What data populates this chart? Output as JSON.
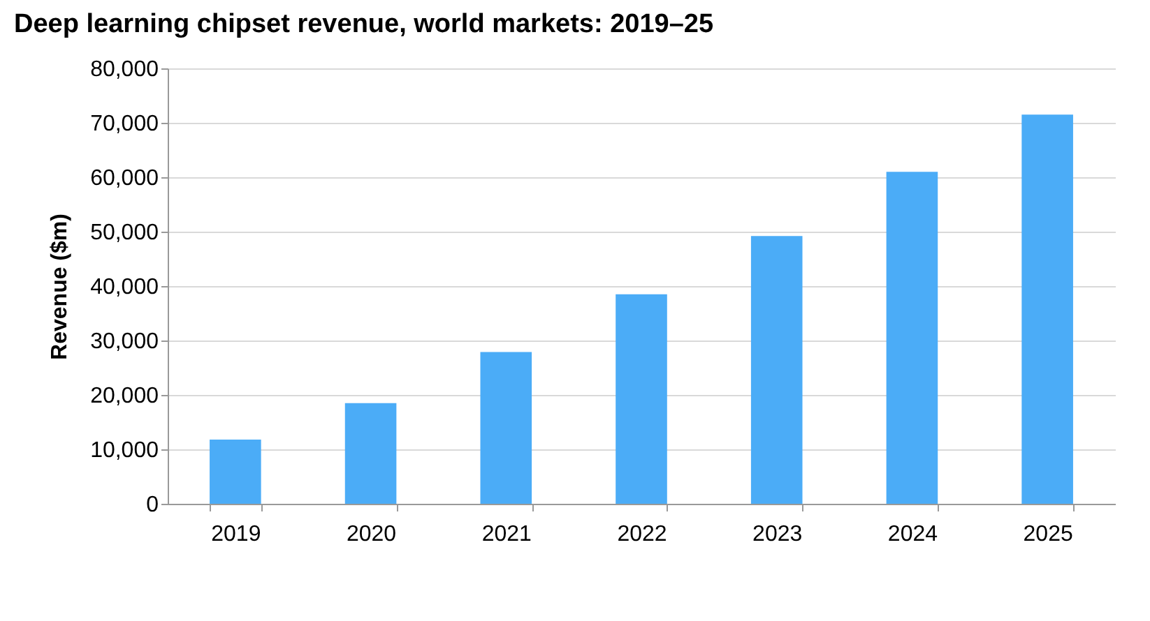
{
  "chart_data": {
    "type": "bar",
    "title": "Deep learning chipset revenue, world markets: 2019–25",
    "ylabel": "Revenue ($m)",
    "categories": [
      "2019",
      "2020",
      "2021",
      "2022",
      "2023",
      "2024",
      "2025"
    ],
    "values": [
      11800,
      18500,
      27900,
      38500,
      49200,
      61000,
      71500
    ],
    "color": "#4bacf7",
    "ylim": [
      0,
      80000
    ],
    "yticks": [
      0,
      {
        "value": 10000,
        "label": "10,000"
      },
      {
        "value": 20000,
        "label": "20,000"
      },
      {
        "value": 30000,
        "label": "30,000"
      },
      {
        "value": 40000,
        "label": "40,000"
      },
      {
        "value": 50000,
        "label": "50,000"
      },
      {
        "value": 60000,
        "label": "60,000"
      },
      {
        "value": 70000,
        "label": "70,000"
      },
      {
        "value": 80000,
        "label": "80,000"
      }
    ],
    "grid": "y"
  }
}
